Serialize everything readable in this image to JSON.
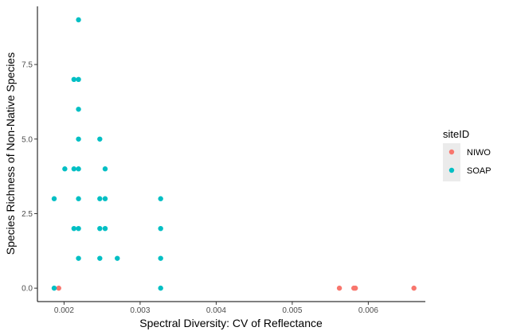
{
  "chart_data": {
    "type": "scatter",
    "title": "",
    "xlabel": "Spectral Diversity: CV of Reflectance",
    "ylabel": "Species Richness of Non-Native Species",
    "xlim": [
      0.00165,
      0.00675
    ],
    "ylim": [
      -0.45,
      9.45
    ],
    "x_ticks": [
      0.002,
      0.003,
      0.004,
      0.005,
      0.006
    ],
    "x_tick_labels": [
      "0.002",
      "0.003",
      "0.004",
      "0.005",
      "0.006"
    ],
    "y_ticks": [
      0,
      2.5,
      5,
      7.5
    ],
    "y_tick_labels": [
      "0.0",
      "2.5",
      "5.0",
      "7.5"
    ],
    "grid": false,
    "legend": {
      "title": "siteID",
      "placement": "right"
    },
    "series": [
      {
        "name": "NIWO",
        "color": "#F8766D",
        "points": [
          [
            0.00193,
            0
          ],
          [
            0.00562,
            0
          ],
          [
            0.00581,
            0
          ],
          [
            0.00583,
            0
          ],
          [
            0.0066,
            0
          ]
        ]
      },
      {
        "name": "SOAP",
        "color": "#00BFC4",
        "points": [
          [
            0.00187,
            0
          ],
          [
            0.00187,
            3
          ],
          [
            0.00201,
            4
          ],
          [
            0.00213,
            7
          ],
          [
            0.00213,
            4
          ],
          [
            0.00213,
            2
          ],
          [
            0.00219,
            9
          ],
          [
            0.00219,
            7
          ],
          [
            0.00219,
            6
          ],
          [
            0.00219,
            5
          ],
          [
            0.00219,
            4
          ],
          [
            0.00219,
            3
          ],
          [
            0.00219,
            2
          ],
          [
            0.00219,
            1
          ],
          [
            0.00247,
            5
          ],
          [
            0.00247,
            3
          ],
          [
            0.00247,
            2
          ],
          [
            0.00247,
            1
          ],
          [
            0.00254,
            4
          ],
          [
            0.00254,
            3
          ],
          [
            0.00254,
            2
          ],
          [
            0.0027,
            1
          ],
          [
            0.00327,
            3
          ],
          [
            0.00327,
            2
          ],
          [
            0.00327,
            1
          ],
          [
            0.00327,
            0
          ]
        ]
      }
    ]
  }
}
